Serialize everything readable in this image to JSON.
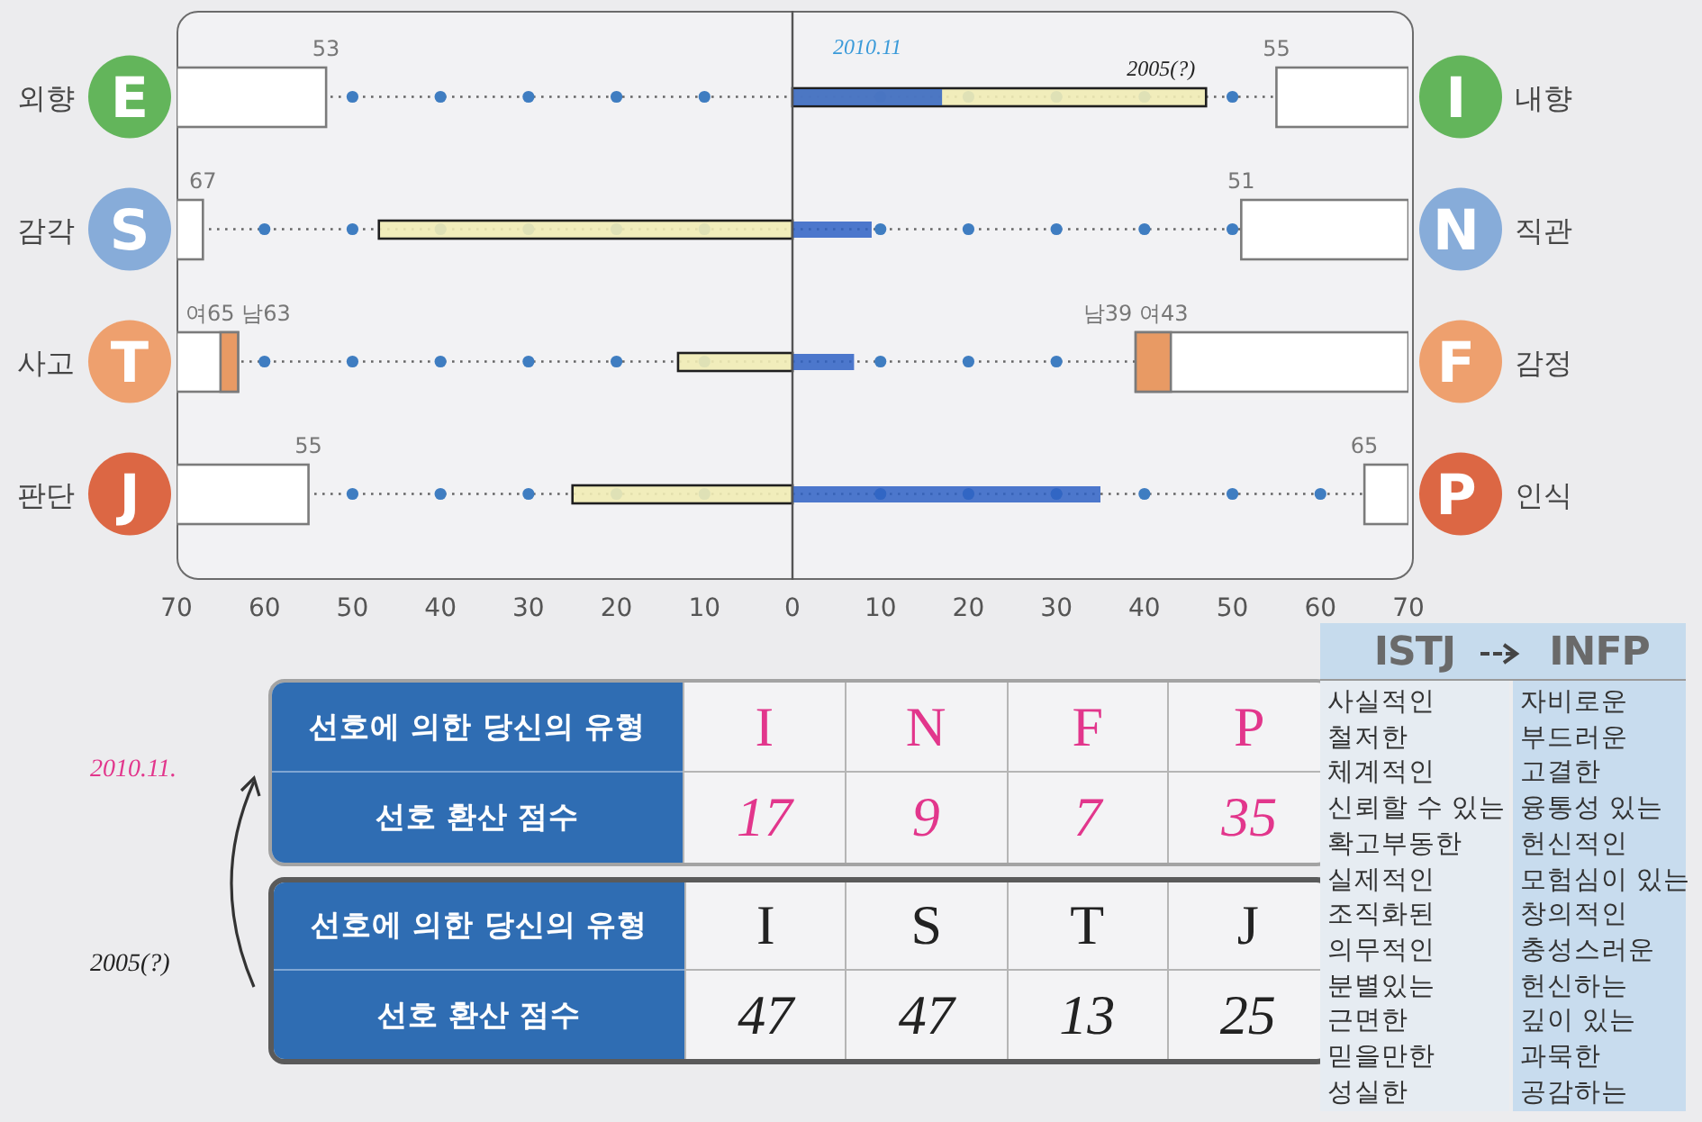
{
  "chart_data": {
    "type": "bar",
    "orientation": "horizontal",
    "categories": [
      "외향 E",
      "감각 S",
      "사고 T",
      "판단 J"
    ],
    "y2_categories": [
      "I 내향",
      "N 직관",
      "F 감정",
      "P 인식"
    ],
    "series": [
      {
        "name": "2005(?)",
        "color": "#f1ecb5",
        "values": [
          47,
          -47,
          -13,
          -25
        ]
      },
      {
        "name": "2010.11",
        "color": "#2f62c4",
        "values": [
          17,
          9,
          7,
          35
        ]
      },
      {
        "color": "#ffffff",
        "base": [
          -53,
          -67,
          -63,
          -55
        ],
        "values": [
          -17,
          -3,
          -7,
          -15
        ]
      },
      {
        "color": "#ffffff",
        "base": [
          55,
          51,
          39,
          65
        ],
        "values": [
          15,
          19,
          31,
          5
        ]
      },
      {
        "color": "#e89a64",
        "base": [
          null,
          null,
          -65,
          null
        ],
        "values": [
          null,
          null,
          2,
          null
        ]
      },
      {
        "color": "#e89a64",
        "base": [
          null,
          null,
          39,
          null
        ],
        "values": [
          null,
          null,
          4,
          null
        ]
      }
    ],
    "xlim": [
      -70,
      70
    ],
    "xticks": [
      {
        "value": -70,
        "label": "70"
      },
      {
        "value": -60,
        "label": "60"
      },
      {
        "value": -50,
        "label": "50"
      },
      {
        "value": -40,
        "label": "40"
      },
      {
        "value": -30,
        "label": "30"
      },
      {
        "value": -20,
        "label": "20"
      },
      {
        "value": -10,
        "label": "10"
      },
      0,
      10,
      20,
      30,
      40,
      50,
      60,
      70
    ],
    "grid": "y",
    "ref_lines": [
      {
        "axis": "x",
        "value": 0,
        "color": "#555555"
      }
    ],
    "annotations": [
      {
        "text": "53",
        "x": -53,
        "y": "외향 E"
      },
      {
        "text": "55",
        "x": 55,
        "y": "외향 E"
      },
      {
        "text": "67",
        "x": -67,
        "y": "감각 S"
      },
      {
        "text": "51",
        "x": 51,
        "y": "감각 S"
      },
      {
        "text": "여65 남63",
        "x": -63,
        "y": "사고 T"
      },
      {
        "text": "남39 여43",
        "x": 39,
        "y": "사고 T"
      },
      {
        "text": "55",
        "x": -55,
        "y": "판단 J"
      },
      {
        "text": "65",
        "x": 65,
        "y": "판단 J"
      },
      "2010.11.",
      "2005(?)",
      "선호에 의한 당신의 유형",
      "I",
      "N",
      "F",
      "P",
      "선호 환산 점수",
      "17",
      "9",
      "7",
      "35",
      "선호에 의한 당신의 유형",
      "I",
      "S",
      "T",
      "J",
      "선호 환산 점수",
      "47",
      "47",
      "13",
      "25",
      "ISTJ",
      "INFP",
      "사실적인",
      "철저한",
      "체계적인",
      "신뢰할 수 있는",
      "확고부동한",
      "실제적인",
      "조직화된",
      "의무적인",
      "분별있는",
      "근면한",
      "믿을만한",
      "성실한",
      "자비로운",
      "부드러운",
      "고결한",
      "융통성 있는",
      "헌신적인",
      "모험심이 있는",
      "창의적인",
      "충성스러운",
      "헌신하는",
      "깊이 있는",
      "과묵한",
      "공감하는"
    ]
  }
}
